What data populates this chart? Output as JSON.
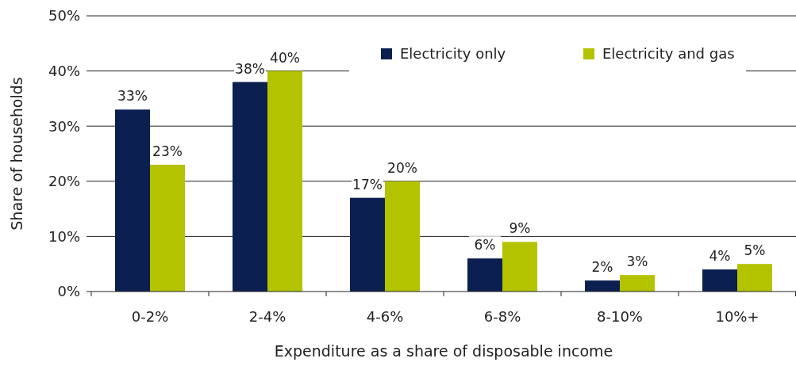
{
  "chart_data": {
    "type": "bar",
    "xlabel": "Expenditure as a share of disposable income",
    "ylabel": "Share of households",
    "categories": [
      "0-2%",
      "2-4%",
      "4-6%",
      "6-8%",
      "8-10%",
      "10%+"
    ],
    "series": [
      {
        "name": "Electricity only",
        "color": "#0b1f50",
        "values": [
          33,
          38,
          17,
          6,
          2,
          4
        ],
        "value_labels": [
          "33%",
          "38%",
          "17%",
          "6%",
          "2%",
          "4%"
        ]
      },
      {
        "name": "Electricity and gas",
        "color": "#b4c300",
        "values": [
          23,
          40,
          20,
          9,
          3,
          5
        ],
        "value_labels": [
          "23%",
          "40%",
          "20%",
          "9%",
          "3%",
          "5%"
        ]
      }
    ],
    "ylim": [
      0,
      50
    ],
    "yticks": [
      {
        "value": 0,
        "label": "0%"
      },
      {
        "value": 10,
        "label": "10%"
      },
      {
        "value": 20,
        "label": "20%"
      },
      {
        "value": 30,
        "label": "30%"
      },
      {
        "value": 40,
        "label": "40%"
      },
      {
        "value": 50,
        "label": "50%"
      }
    ],
    "grid": "y",
    "legend": "top right"
  }
}
